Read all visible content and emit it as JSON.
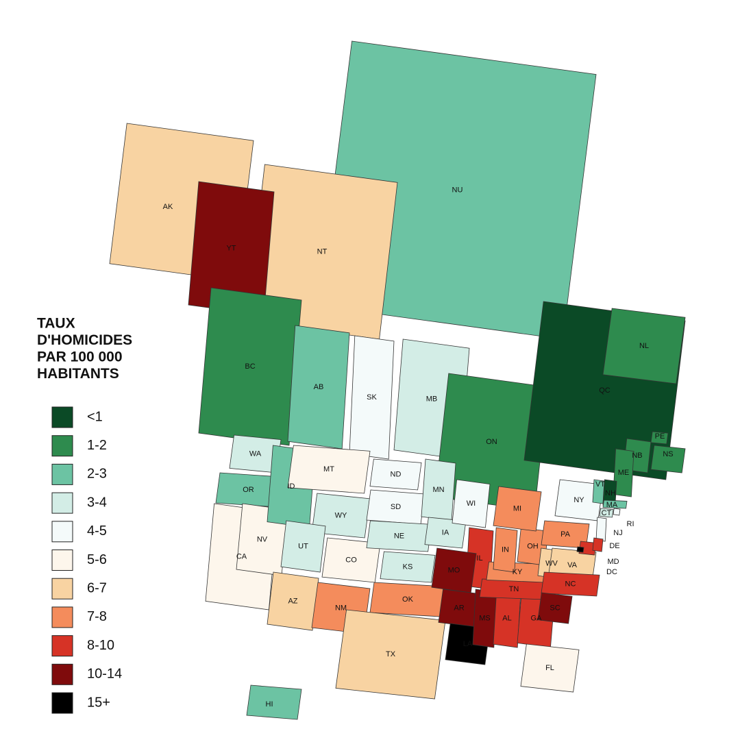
{
  "title_lines": [
    "TAUX",
    "D'HOMICIDES",
    "PAR 100 000",
    "HABITANTS"
  ],
  "legend": [
    {
      "label": "<1",
      "color": "#0b4a26"
    },
    {
      "label": "1-2",
      "color": "#2e8b4e"
    },
    {
      "label": "2-3",
      "color": "#6cc3a3"
    },
    {
      "label": "3-4",
      "color": "#d3ede6"
    },
    {
      "label": "4-5",
      "color": "#f4fafa"
    },
    {
      "label": "5-6",
      "color": "#fdf6ec"
    },
    {
      "label": "6-7",
      "color": "#f8d3a2"
    },
    {
      "label": "7-8",
      "color": "#f48c5c"
    },
    {
      "label": "8-10",
      "color": "#d63326"
    },
    {
      "label": "10-14",
      "color": "#7f0b0c"
    },
    {
      "label": "15+",
      "color": "#000000"
    }
  ],
  "regions": [
    {
      "label": "NU",
      "bin": "2-3"
    },
    {
      "label": "AK",
      "bin": "6-7"
    },
    {
      "label": "NT",
      "bin": "6-7"
    },
    {
      "label": "YT",
      "bin": "10-14"
    },
    {
      "label": "BC",
      "bin": "1-2"
    },
    {
      "label": "AB",
      "bin": "2-3"
    },
    {
      "label": "SK",
      "bin": "4-5"
    },
    {
      "label": "MB",
      "bin": "3-4"
    },
    {
      "label": "ON",
      "bin": "1-2"
    },
    {
      "label": "QC",
      "bin": "<1"
    },
    {
      "label": "NL",
      "bin": "1-2"
    },
    {
      "label": "NB",
      "bin": "1-2"
    },
    {
      "label": "NS",
      "bin": "1-2"
    },
    {
      "label": "PE",
      "bin": "1-2"
    },
    {
      "label": "ME",
      "bin": "1-2"
    },
    {
      "label": "NY",
      "bin": "4-5"
    },
    {
      "label": "VT",
      "bin": "2-3"
    },
    {
      "label": "NH",
      "bin": "<1"
    },
    {
      "label": "MA",
      "bin": "2-3"
    },
    {
      "label": "CT",
      "bin": "3-4"
    },
    {
      "label": "RI",
      "bin": "4-5"
    },
    {
      "label": "NJ",
      "bin": "4-5"
    },
    {
      "label": "WA",
      "bin": "3-4"
    },
    {
      "label": "OR",
      "bin": "2-3"
    },
    {
      "label": "CA",
      "bin": "5-6"
    },
    {
      "label": "NV",
      "bin": "5-6"
    },
    {
      "label": "ID",
      "bin": "2-3"
    },
    {
      "label": "MT",
      "bin": "5-6"
    },
    {
      "label": "WY",
      "bin": "3-4"
    },
    {
      "label": "UT",
      "bin": "3-4"
    },
    {
      "label": "CO",
      "bin": "5-6"
    },
    {
      "label": "AZ",
      "bin": "6-7"
    },
    {
      "label": "NM",
      "bin": "7-8"
    },
    {
      "label": "ND",
      "bin": "4-5"
    },
    {
      "label": "SD",
      "bin": "4-5"
    },
    {
      "label": "NE",
      "bin": "3-4"
    },
    {
      "label": "KS",
      "bin": "3-4"
    },
    {
      "label": "OK",
      "bin": "7-8"
    },
    {
      "label": "TX",
      "bin": "6-7"
    },
    {
      "label": "MN",
      "bin": "3-4"
    },
    {
      "label": "IA",
      "bin": "3-4"
    },
    {
      "label": "WI",
      "bin": "4-5"
    },
    {
      "label": "IL",
      "bin": "8-10"
    },
    {
      "label": "MO",
      "bin": "10-14"
    },
    {
      "label": "AR",
      "bin": "10-14"
    },
    {
      "label": "LA",
      "bin": "15+"
    },
    {
      "label": "MS",
      "bin": "10-14"
    },
    {
      "label": "AL",
      "bin": "8-10"
    },
    {
      "label": "GA",
      "bin": "8-10"
    },
    {
      "label": "FL",
      "bin": "5-6"
    },
    {
      "label": "TN",
      "bin": "8-10"
    },
    {
      "label": "KY",
      "bin": "7-8"
    },
    {
      "label": "IN",
      "bin": "7-8"
    },
    {
      "label": "OH",
      "bin": "7-8"
    },
    {
      "label": "MI",
      "bin": "7-8"
    },
    {
      "label": "PA",
      "bin": "7-8"
    },
    {
      "label": "WV",
      "bin": "6-7"
    },
    {
      "label": "VA",
      "bin": "6-7"
    },
    {
      "label": "NC",
      "bin": "8-10"
    },
    {
      "label": "SC",
      "bin": "10-14"
    },
    {
      "label": "MD",
      "bin": "8-10"
    },
    {
      "label": "DE",
      "bin": "8-10"
    },
    {
      "label": "DC",
      "bin": "15+"
    },
    {
      "label": "HI",
      "bin": "2-3"
    }
  ]
}
